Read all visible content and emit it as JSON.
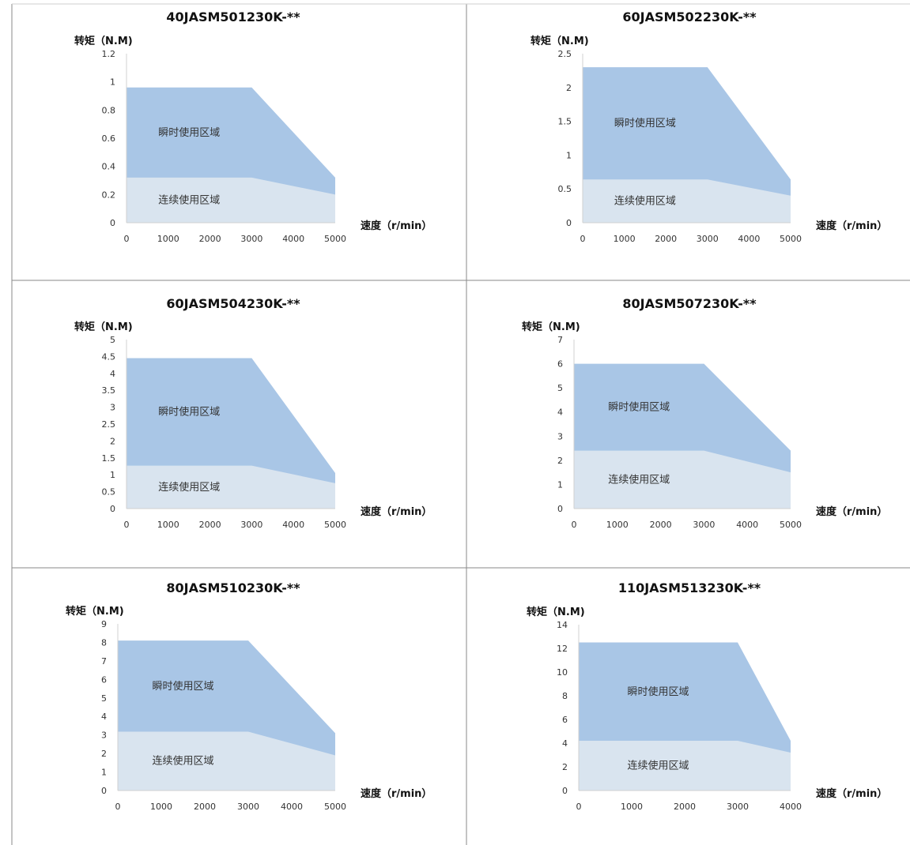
{
  "chart_data": [
    {
      "type": "area",
      "title": "40JASM501230K-**",
      "ylabel": "转矩（N.M)",
      "xlabel": "速度（r/min）",
      "x_ticks": [
        0,
        1000,
        2000,
        3000,
        4000,
        5000
      ],
      "y_ticks": [
        "0",
        "0.2",
        "0.4",
        "0.6",
        "0.8",
        "1",
        "1.2"
      ],
      "ylim": [
        0,
        1.2
      ],
      "xlim": [
        0,
        5000
      ],
      "series": [
        {
          "name": "瞬时使用区域",
          "x": [
            0,
            3000,
            5000
          ],
          "values": [
            0.96,
            0.96,
            0.32
          ],
          "color": "#a9c6e6"
        },
        {
          "name": "连续使用区域",
          "x": [
            0,
            3000,
            5000
          ],
          "values": [
            0.32,
            0.32,
            0.2
          ],
          "color": "#d9e4ef"
        }
      ]
    },
    {
      "type": "area",
      "title": "60JASM502230K-**",
      "ylabel": "转矩（N.M)",
      "xlabel": "速度（r/min）",
      "x_ticks": [
        0,
        1000,
        2000,
        3000,
        4000,
        5000
      ],
      "y_ticks": [
        "0",
        "0.5",
        "1",
        "1.5",
        "2",
        "2.5"
      ],
      "ylim": [
        0,
        2.5
      ],
      "xlim": [
        0,
        5000
      ],
      "series": [
        {
          "name": "瞬时使用区域",
          "x": [
            0,
            3000,
            5000
          ],
          "values": [
            2.3,
            2.3,
            0.64
          ],
          "color": "#a9c6e6"
        },
        {
          "name": "连续使用区域",
          "x": [
            0,
            3000,
            5000
          ],
          "values": [
            0.64,
            0.64,
            0.4
          ],
          "color": "#d9e4ef"
        }
      ]
    },
    {
      "type": "area",
      "title": "60JASM504230K-**",
      "ylabel": "转矩（N.M)",
      "xlabel": "速度（r/min）",
      "x_ticks": [
        0,
        1000,
        2000,
        3000,
        4000,
        5000
      ],
      "y_ticks": [
        "0",
        "0.5",
        "1",
        "1.5",
        "2",
        "2.5",
        "3",
        "3.5",
        "4",
        "4.5",
        "5"
      ],
      "ylim": [
        0,
        5
      ],
      "xlim": [
        0,
        5000
      ],
      "series": [
        {
          "name": "瞬时使用区域",
          "x": [
            0,
            3000,
            5000
          ],
          "values": [
            4.45,
            4.45,
            1.05
          ],
          "color": "#a9c6e6"
        },
        {
          "name": "连续使用区域",
          "x": [
            0,
            3000,
            5000
          ],
          "values": [
            1.27,
            1.27,
            0.75
          ],
          "color": "#d9e4ef"
        }
      ]
    },
    {
      "type": "area",
      "title": "80JASM507230K-**",
      "ylabel": "转矩（N.M)",
      "xlabel": "速度（r/min）",
      "x_ticks": [
        0,
        1000,
        2000,
        3000,
        4000,
        5000
      ],
      "y_ticks": [
        "0",
        "1",
        "2",
        "3",
        "4",
        "5",
        "6",
        "7"
      ],
      "ylim": [
        0,
        7
      ],
      "xlim": [
        0,
        5000
      ],
      "series": [
        {
          "name": "瞬时使用区域",
          "x": [
            0,
            3000,
            5000
          ],
          "values": [
            6.0,
            6.0,
            2.4
          ],
          "color": "#a9c6e6"
        },
        {
          "name": "连续使用区域",
          "x": [
            0,
            3000,
            5000
          ],
          "values": [
            2.4,
            2.4,
            1.5
          ],
          "color": "#d9e4ef"
        }
      ]
    },
    {
      "type": "area",
      "title": "80JASM510230K-**",
      "ylabel": "转矩（N.M)",
      "xlabel": "速度（r/min）",
      "x_ticks": [
        0,
        1000,
        2000,
        3000,
        4000,
        5000
      ],
      "y_ticks": [
        "0",
        "1",
        "2",
        "3",
        "4",
        "5",
        "6",
        "7",
        "8",
        "9"
      ],
      "ylim": [
        0,
        9
      ],
      "xlim": [
        0,
        5000
      ],
      "series": [
        {
          "name": "瞬时使用区域",
          "x": [
            0,
            3000,
            5000
          ],
          "values": [
            8.1,
            8.1,
            3.1
          ],
          "color": "#a9c6e6"
        },
        {
          "name": "连续使用区域",
          "x": [
            0,
            3000,
            5000
          ],
          "values": [
            3.18,
            3.18,
            1.9
          ],
          "color": "#d9e4ef"
        }
      ]
    },
    {
      "type": "area",
      "title": "110JASM513230K-**",
      "ylabel": "转矩（N.M)",
      "xlabel": "速度（r/min）",
      "x_ticks": [
        0,
        1000,
        2000,
        3000,
        4000
      ],
      "y_ticks": [
        "0",
        "2",
        "4",
        "6",
        "8",
        "10",
        "12",
        "14"
      ],
      "ylim": [
        0,
        14
      ],
      "xlim": [
        0,
        4000
      ],
      "series": [
        {
          "name": "瞬时使用区域",
          "x": [
            0,
            3000,
            4000
          ],
          "values": [
            12.5,
            12.5,
            4.2
          ],
          "color": "#a9c6e6"
        },
        {
          "name": "连续使用区域",
          "x": [
            0,
            3000,
            4000
          ],
          "values": [
            4.2,
            4.2,
            3.2
          ],
          "color": "#d9e4ef"
        }
      ]
    }
  ]
}
